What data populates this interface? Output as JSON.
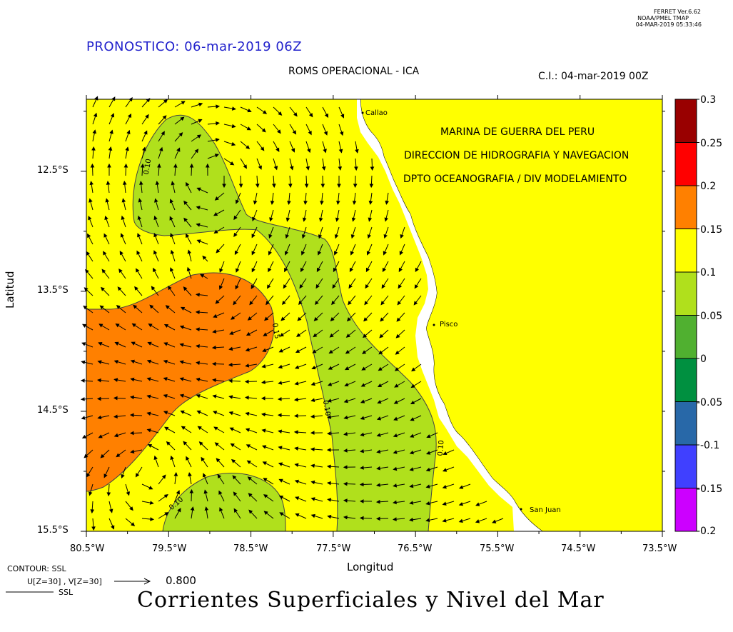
{
  "header": {
    "software": "FERRET  Ver.6.62",
    "lab": "NOAA/PMEL TMAP",
    "timestamp": "04-MAR-2019 05:33:46"
  },
  "forecast_title": "PRONOSTICO: 06-mar-2019 06Z",
  "model_title": "ROMS OPERACIONAL - ICA",
  "init_condition": "C.I.: 04-mar-2019 00Z",
  "institution": [
    "MARINA DE GUERRA DEL PERU",
    "DIRECCION DE HIDROGRAFIA Y NAVEGACION",
    "DPTO OCEANOGRAFIA / DIV MODELAMIENTO"
  ],
  "ports": [
    "Callao",
    "Pisco",
    "San Juan"
  ],
  "axes": {
    "xlabel": "Longitud",
    "ylabel": "Latitud",
    "xticks": [
      "80.5°W",
      "79.5°W",
      "78.5°W",
      "77.5°W",
      "76.5°W",
      "75.5°W",
      "74.5°W",
      "73.5°W"
    ],
    "yticks": [
      "12.5°S",
      "13.5°S",
      "14.5°S",
      "15.5°S"
    ],
    "xrange": [
      -80.5,
      -73.5
    ],
    "yrange": [
      -15.5,
      -11.9
    ]
  },
  "contour_labels": [
    "0.10",
    "0.15",
    "0.10",
    "0.10",
    "0.10"
  ],
  "colorbar": {
    "ticks": [
      "0.3",
      "0.25",
      "0.2",
      "0.15",
      "0.1",
      "0.05",
      "0",
      "-0.05",
      "-0.1",
      "-0.15",
      "-0.2"
    ],
    "colors": [
      "#990000",
      "#ff0000",
      "#ff8000",
      "#ffff00",
      "#b0e01c",
      "#50b030",
      "#009040",
      "#2868a8",
      "#4040ff",
      "#cc00ff"
    ]
  },
  "fill_colors": {
    "sea_yellow": "#ffff00",
    "green": "#b0e01c",
    "orange": "#ff8000",
    "land": "#ffff00"
  },
  "footer": {
    "contour_label": "CONTOUR: SSL",
    "vector_label": "U[Z=30] , V[Z=30]",
    "vector_ref": "0.800",
    "line_label": "SSL",
    "main_title": "Corrientes Superficiales y Nivel del Mar"
  }
}
